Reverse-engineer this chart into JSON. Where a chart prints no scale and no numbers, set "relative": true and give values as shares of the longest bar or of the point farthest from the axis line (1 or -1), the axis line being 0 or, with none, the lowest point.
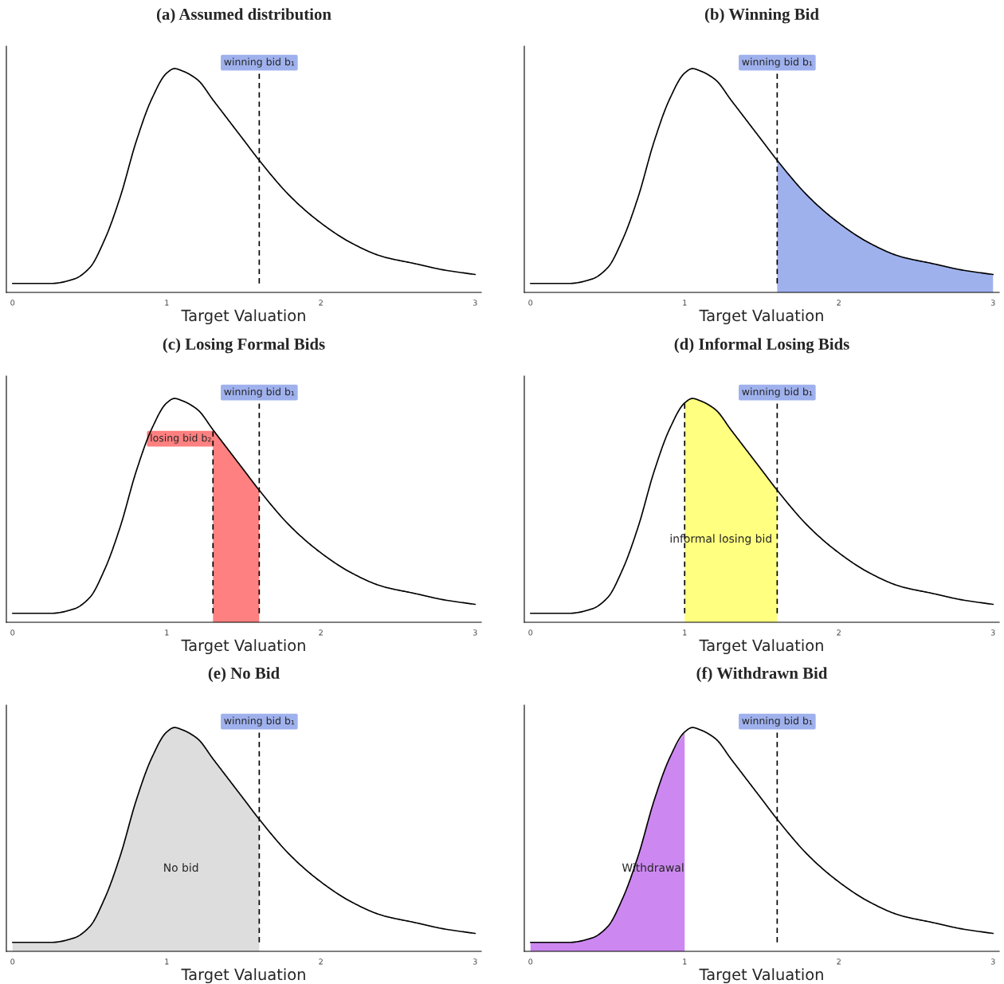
{
  "chart_data": [
    {
      "type": "line",
      "title": "(a) Assumed distribution",
      "xlabel": "Target Valuation",
      "relative": true,
      "xlim": [
        -0.04,
        3.04
      ],
      "xticks": [
        0,
        1,
        2,
        3
      ],
      "tick_labels": "x",
      "x": [
        0,
        0.25,
        0.4,
        0.5,
        0.6,
        0.7,
        0.8,
        0.9,
        1.0,
        1.05,
        1.1,
        1.2,
        1.3,
        1.4,
        1.5,
        1.6,
        1.8,
        2.0,
        2.2,
        2.4,
        2.6,
        2.8,
        3.0
      ],
      "series": [
        {
          "color": "#000000",
          "values": [
            0.04,
            0.04,
            0.06,
            0.11,
            0.24,
            0.43,
            0.67,
            0.86,
            0.98,
            1.0,
            0.99,
            0.95,
            0.86,
            0.77,
            0.68,
            0.59,
            0.43,
            0.31,
            0.22,
            0.16,
            0.13,
            0.1,
            0.08
          ]
        }
      ],
      "ref_lines": [
        {
          "axis": "x",
          "value": 1.6,
          "label": "winning bid b₁",
          "color": "#000000",
          "line_style": "dashed"
        }
      ]
    },
    {
      "type": "line",
      "title": "(b) Winning Bid",
      "xlabel": "Target Valuation",
      "relative": true,
      "xlim": [
        -0.04,
        3.04
      ],
      "xticks": [
        0,
        1,
        2,
        3
      ],
      "tick_labels": "x",
      "x": [
        0,
        0.25,
        0.4,
        0.5,
        0.6,
        0.7,
        0.8,
        0.9,
        1.0,
        1.05,
        1.1,
        1.2,
        1.3,
        1.4,
        1.5,
        1.6,
        1.8,
        2.0,
        2.2,
        2.4,
        2.6,
        2.8,
        3.0
      ],
      "series": [
        {
          "color": "#000000",
          "values": [
            0.04,
            0.04,
            0.06,
            0.11,
            0.24,
            0.43,
            0.67,
            0.86,
            0.98,
            1.0,
            0.99,
            0.95,
            0.86,
            0.77,
            0.68,
            0.59,
            0.43,
            0.31,
            0.22,
            0.16,
            0.13,
            0.1,
            0.08
          ]
        },
        {
          "type": "area",
          "color": "#9fb1ed",
          "x": [
            1.6,
            1.8,
            2.0,
            2.2,
            2.4,
            2.6,
            2.8,
            3.0
          ],
          "values": [
            0.59,
            0.43,
            0.31,
            0.22,
            0.16,
            0.13,
            0.1,
            0.08
          ]
        }
      ],
      "ref_lines": [
        {
          "axis": "x",
          "value": 1.6,
          "label": "winning bid b₁",
          "color": "#000000",
          "line_style": "dashed"
        }
      ]
    },
    {
      "type": "line",
      "title": "(c) Losing Formal Bids",
      "xlabel": "Target Valuation",
      "relative": true,
      "xlim": [
        -0.04,
        3.04
      ],
      "xticks": [
        0,
        1,
        2,
        3
      ],
      "tick_labels": "x",
      "x": [
        0,
        0.25,
        0.4,
        0.5,
        0.6,
        0.7,
        0.8,
        0.9,
        1.0,
        1.05,
        1.1,
        1.2,
        1.3,
        1.4,
        1.5,
        1.6,
        1.8,
        2.0,
        2.2,
        2.4,
        2.6,
        2.8,
        3.0
      ],
      "series": [
        {
          "color": "#000000",
          "values": [
            0.04,
            0.04,
            0.06,
            0.11,
            0.24,
            0.43,
            0.67,
            0.86,
            0.98,
            1.0,
            0.99,
            0.95,
            0.86,
            0.77,
            0.68,
            0.59,
            0.43,
            0.31,
            0.22,
            0.16,
            0.13,
            0.1,
            0.08
          ]
        },
        {
          "type": "area",
          "color": "#ff8080",
          "x": [
            1.3,
            1.4,
            1.5,
            1.6
          ],
          "values": [
            0.86,
            0.77,
            0.68,
            0.59
          ]
        }
      ],
      "ref_lines": [
        {
          "axis": "x",
          "value": 1.6,
          "label": "winning bid b₁",
          "color": "#000000",
          "line_style": "dashed"
        },
        {
          "axis": "x",
          "value": 1.3,
          "label": "losing bid b₂",
          "color": "#000000",
          "line_style": "dashed"
        }
      ]
    },
    {
      "type": "line",
      "title": "(d) Informal Losing Bids",
      "xlabel": "Target Valuation",
      "relative": true,
      "xlim": [
        -0.04,
        3.04
      ],
      "xticks": [
        0,
        1,
        2,
        3
      ],
      "tick_labels": "x",
      "x": [
        0,
        0.25,
        0.4,
        0.5,
        0.6,
        0.7,
        0.8,
        0.9,
        1.0,
        1.05,
        1.1,
        1.2,
        1.3,
        1.4,
        1.5,
        1.6,
        1.8,
        2.0,
        2.2,
        2.4,
        2.6,
        2.8,
        3.0
      ],
      "series": [
        {
          "color": "#000000",
          "values": [
            0.04,
            0.04,
            0.06,
            0.11,
            0.24,
            0.43,
            0.67,
            0.86,
            0.98,
            1.0,
            0.99,
            0.95,
            0.86,
            0.77,
            0.68,
            0.59,
            0.43,
            0.31,
            0.22,
            0.16,
            0.13,
            0.1,
            0.08
          ]
        },
        {
          "type": "area",
          "name": "informal losing bid",
          "color": "#ffff80",
          "x": [
            1.0,
            1.05,
            1.1,
            1.2,
            1.3,
            1.4,
            1.5,
            1.6
          ],
          "values": [
            0.98,
            1.0,
            0.99,
            0.95,
            0.86,
            0.77,
            0.68,
            0.59
          ]
        }
      ],
      "ref_lines": [
        {
          "axis": "x",
          "value": 1.6,
          "label": "winning bid b₁",
          "color": "#000000",
          "line_style": "dashed"
        },
        {
          "axis": "x",
          "value": 1.0,
          "color": "#000000",
          "line_style": "dashed"
        }
      ]
    },
    {
      "type": "line",
      "title": "(e) No Bid",
      "xlabel": "Target Valuation",
      "relative": true,
      "xlim": [
        -0.04,
        3.04
      ],
      "xticks": [
        0,
        1,
        2,
        3
      ],
      "tick_labels": "x",
      "x": [
        0,
        0.25,
        0.4,
        0.5,
        0.6,
        0.7,
        0.8,
        0.9,
        1.0,
        1.05,
        1.1,
        1.2,
        1.3,
        1.4,
        1.5,
        1.6,
        1.8,
        2.0,
        2.2,
        2.4,
        2.6,
        2.8,
        3.0
      ],
      "series": [
        {
          "color": "#000000",
          "values": [
            0.04,
            0.04,
            0.06,
            0.11,
            0.24,
            0.43,
            0.67,
            0.86,
            0.98,
            1.0,
            0.99,
            0.95,
            0.86,
            0.77,
            0.68,
            0.59,
            0.43,
            0.31,
            0.22,
            0.16,
            0.13,
            0.1,
            0.08
          ]
        },
        {
          "type": "area",
          "name": "No bid",
          "color": "#dddddd",
          "x": [
            0,
            0.25,
            0.4,
            0.5,
            0.6,
            0.7,
            0.8,
            0.9,
            1.0,
            1.05,
            1.1,
            1.2,
            1.3,
            1.4,
            1.5,
            1.6
          ],
          "values": [
            0.04,
            0.04,
            0.06,
            0.11,
            0.24,
            0.43,
            0.67,
            0.86,
            0.98,
            1.0,
            0.99,
            0.95,
            0.86,
            0.77,
            0.68,
            0.59
          ]
        }
      ],
      "ref_lines": [
        {
          "axis": "x",
          "value": 1.6,
          "label": "winning bid b₁",
          "color": "#000000",
          "line_style": "dashed"
        }
      ]
    },
    {
      "type": "line",
      "title": "(f) Withdrawn Bid",
      "xlabel": "Target Valuation",
      "relative": true,
      "xlim": [
        -0.04,
        3.04
      ],
      "xticks": [
        0,
        1,
        2,
        3
      ],
      "tick_labels": "x",
      "x": [
        0,
        0.25,
        0.4,
        0.5,
        0.6,
        0.7,
        0.8,
        0.9,
        1.0,
        1.05,
        1.1,
        1.2,
        1.3,
        1.4,
        1.5,
        1.6,
        1.8,
        2.0,
        2.2,
        2.4,
        2.6,
        2.8,
        3.0
      ],
      "series": [
        {
          "color": "#000000",
          "values": [
            0.04,
            0.04,
            0.06,
            0.11,
            0.24,
            0.43,
            0.67,
            0.86,
            0.98,
            1.0,
            0.99,
            0.95,
            0.86,
            0.77,
            0.68,
            0.59,
            0.43,
            0.31,
            0.22,
            0.16,
            0.13,
            0.1,
            0.08
          ]
        },
        {
          "type": "area",
          "name": "Withdrawal",
          "color": "#cc88f0",
          "x": [
            0,
            0.25,
            0.4,
            0.5,
            0.6,
            0.7,
            0.8,
            0.9,
            1.0
          ],
          "values": [
            0.04,
            0.04,
            0.06,
            0.11,
            0.24,
            0.43,
            0.67,
            0.86,
            0.98
          ]
        }
      ],
      "ref_lines": [
        {
          "axis": "x",
          "value": 1.6,
          "label": "winning bid b₁",
          "color": "#000000",
          "line_style": "dashed"
        }
      ]
    }
  ]
}
